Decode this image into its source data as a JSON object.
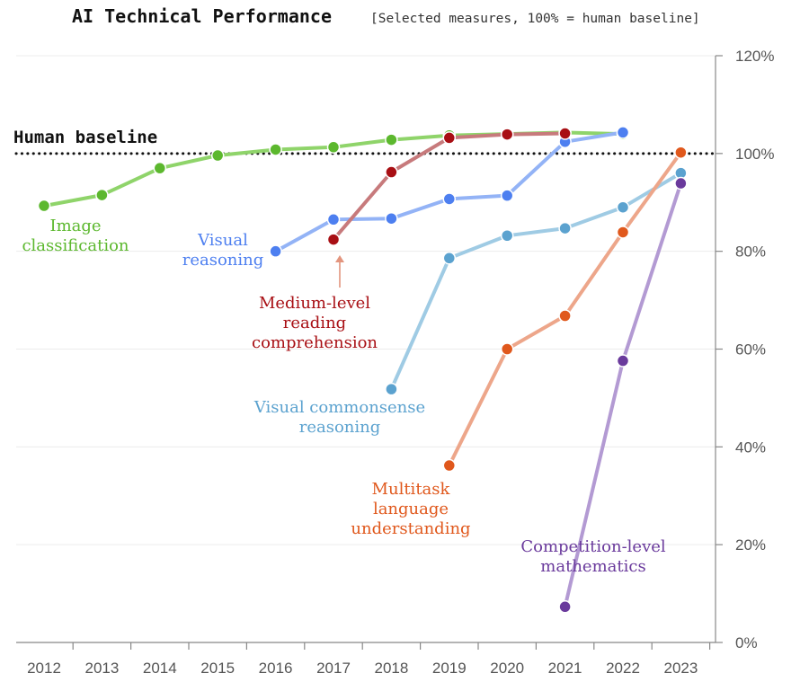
{
  "title": "AI Technical Performance",
  "subtitle": "[Selected measures, 100% = human baseline]",
  "chart_data": {
    "type": "line",
    "x": [
      2012,
      2013,
      2014,
      2015,
      2016,
      2017,
      2018,
      2019,
      2020,
      2021,
      2022,
      2023
    ],
    "x_tick_labels": [
      "2012",
      "2013",
      "2014",
      "2015",
      "2016",
      "2017",
      "2018",
      "2019",
      "2020",
      "2021",
      "2022",
      "2023"
    ],
    "ylim": [
      0,
      120
    ],
    "y_ticks": [
      0,
      20,
      40,
      60,
      80,
      100,
      120
    ],
    "y_tick_labels": [
      "0%",
      "20%",
      "40%",
      "60%",
      "80%",
      "100%",
      "120%"
    ],
    "y_axis_position": "right",
    "grid": "horizontal",
    "baseline": {
      "label": "Human baseline",
      "value": 100
    },
    "series": [
      {
        "name": "Image classification",
        "label_lines": [
          "Image",
          "classification"
        ],
        "color": "#5cb82e",
        "line_color": "#8fd46a",
        "points": [
          [
            2012,
            89.3
          ],
          [
            2013,
            91.5
          ],
          [
            2014,
            97.0
          ],
          [
            2015,
            99.6
          ],
          [
            2016,
            100.8
          ],
          [
            2017,
            101.3
          ],
          [
            2018,
            102.8
          ],
          [
            2019,
            103.7
          ],
          [
            2020,
            104.0
          ],
          [
            2021,
            104.3
          ],
          [
            2022,
            104.0
          ]
        ]
      },
      {
        "name": "Visual reasoning",
        "label_lines": [
          "Visual",
          "reasoning"
        ],
        "color": "#4d7ff0",
        "line_color": "#93b3f6",
        "points": [
          [
            2016,
            80.0
          ],
          [
            2017,
            86.5
          ],
          [
            2018,
            86.7
          ],
          [
            2019,
            90.7
          ],
          [
            2020,
            91.4
          ],
          [
            2021,
            102.4
          ],
          [
            2022,
            104.3
          ]
        ]
      },
      {
        "name": "Medium-level reading comprehension",
        "label_lines": [
          "Medium-level",
          "reading",
          "comprehension"
        ],
        "color": "#a80f14",
        "line_color": "#c77a7c",
        "points": [
          [
            2017,
            82.4
          ],
          [
            2018,
            96.2
          ],
          [
            2019,
            103.2
          ],
          [
            2020,
            103.9
          ],
          [
            2021,
            104.1
          ]
        ]
      },
      {
        "name": "Visual commonsense reasoning",
        "label_lines": [
          "Visual commonsense",
          "reasoning"
        ],
        "color": "#5ba2cf",
        "line_color": "#9fcbe4",
        "points": [
          [
            2018,
            51.8
          ],
          [
            2019,
            78.6
          ],
          [
            2020,
            83.2
          ],
          [
            2021,
            84.7
          ],
          [
            2022,
            89.0
          ],
          [
            2023,
            96.0
          ]
        ]
      },
      {
        "name": "Multitask language understanding",
        "label_lines": [
          "Multitask",
          "language",
          "understanding"
        ],
        "color": "#e0581c",
        "line_color": "#eda68a",
        "points": [
          [
            2019,
            36.2
          ],
          [
            2020,
            60.0
          ],
          [
            2021,
            66.8
          ],
          [
            2022,
            83.9
          ],
          [
            2023,
            100.2
          ]
        ]
      },
      {
        "name": "Competition-level mathematics",
        "label_lines": [
          "Competition-level",
          "mathematics"
        ],
        "color": "#6a3a9c",
        "line_color": "#b39ad3",
        "points": [
          [
            2021,
            7.3
          ],
          [
            2022,
            57.6
          ],
          [
            2023,
            93.9
          ]
        ]
      }
    ]
  }
}
